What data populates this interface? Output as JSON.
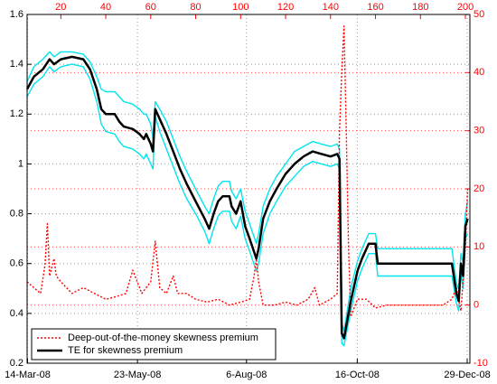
{
  "chart_data": {
    "type": "line",
    "xlim": [
      5,
      202
    ],
    "xticks": [
      {
        "value": 5.2,
        "label": "14-Mar-08"
      },
      {
        "value": 54.1,
        "label": "23-May-08"
      },
      {
        "value": 102.6,
        "label": "6-Aug-08"
      },
      {
        "value": 151.9,
        "label": "16-Oct-08"
      },
      {
        "value": 200.8,
        "label": "29-Dec-08"
      }
    ],
    "x2ticks": [
      20,
      40,
      60,
      80,
      100,
      120,
      140,
      160,
      180,
      200
    ],
    "ylim": [
      0.2,
      1.6
    ],
    "yticks": [
      0.2,
      0.4,
      0.6,
      0.8,
      1,
      1.2,
      1.4,
      1.6
    ],
    "y2lim": [
      -10,
      50
    ],
    "y2ticks": [
      -10,
      0,
      10,
      20,
      30,
      40,
      50
    ],
    "y2color": "#ff0000",
    "grid": true,
    "legend": "lower left",
    "series": [
      {
        "color": "#00e5ee",
        "x": [
          5,
          8,
          12,
          15,
          17,
          20,
          25,
          30,
          33,
          36,
          38,
          40,
          44,
          46,
          48,
          52,
          55,
          57,
          58,
          60,
          61,
          62,
          64,
          67,
          70,
          73,
          76,
          80,
          84,
          86,
          88,
          90,
          92,
          95,
          96,
          98,
          100,
          102,
          104,
          107,
          108,
          110,
          113,
          116,
          120,
          124,
          128,
          132,
          136,
          140,
          143,
          144,
          145,
          146,
          149,
          152,
          154,
          157,
          160,
          161,
          180,
          194,
          196,
          197,
          198,
          199,
          200,
          201
        ],
        "values": [
          1.33,
          1.39,
          1.42,
          1.45,
          1.43,
          1.45,
          1.45,
          1.44,
          1.41,
          1.35,
          1.3,
          1.29,
          1.29,
          1.27,
          1.25,
          1.24,
          1.22,
          1.2,
          1.2,
          1.16,
          1.1,
          1.25,
          1.22,
          1.17,
          1.1,
          1.03,
          0.97,
          0.9,
          0.83,
          0.8,
          0.86,
          0.91,
          0.93,
          0.93,
          0.89,
          0.86,
          0.9,
          0.81,
          0.76,
          0.68,
          0.72,
          0.83,
          0.9,
          0.95,
          1.0,
          1.05,
          1.07,
          1.09,
          1.08,
          1.07,
          1.08,
          1.06,
          0.36,
          0.33,
          0.5,
          0.61,
          0.66,
          0.72,
          0.72,
          0.66,
          0.66,
          0.66,
          0.52,
          0.5,
          0.64,
          0.6,
          0.8,
          0.85
        ]
      },
      {
        "color": "#00e5ee",
        "x": [
          5,
          8,
          12,
          15,
          17,
          20,
          25,
          30,
          33,
          36,
          38,
          40,
          44,
          46,
          48,
          52,
          55,
          57,
          58,
          60,
          61,
          62,
          64,
          67,
          70,
          73,
          76,
          80,
          84,
          86,
          88,
          90,
          92,
          95,
          96,
          98,
          100,
          102,
          104,
          107,
          108,
          110,
          113,
          116,
          120,
          124,
          128,
          132,
          136,
          140,
          143,
          144,
          145,
          146,
          149,
          152,
          154,
          157,
          160,
          161,
          180,
          194,
          196,
          197,
          198,
          199,
          200,
          201
        ],
        "values": [
          1.27,
          1.32,
          1.35,
          1.39,
          1.37,
          1.39,
          1.4,
          1.39,
          1.34,
          1.25,
          1.16,
          1.13,
          1.12,
          1.09,
          1.07,
          1.06,
          1.04,
          1.02,
          1.04,
          1.0,
          0.98,
          1.19,
          1.13,
          1.06,
          0.99,
          0.92,
          0.86,
          0.8,
          0.73,
          0.68,
          0.74,
          0.79,
          0.81,
          0.81,
          0.77,
          0.74,
          0.79,
          0.7,
          0.65,
          0.57,
          0.6,
          0.72,
          0.8,
          0.85,
          0.91,
          0.95,
          0.99,
          1.01,
          1.0,
          0.99,
          1.0,
          0.98,
          0.28,
          0.27,
          0.41,
          0.53,
          0.58,
          0.64,
          0.64,
          0.55,
          0.55,
          0.55,
          0.44,
          0.41,
          0.56,
          0.5,
          0.7,
          0.72
        ]
      },
      {
        "name": "Deep-out-of-the-money skewness premium",
        "color": "#ff0000",
        "axis": "y2",
        "dash": true,
        "x": [
          5,
          8,
          11,
          13,
          14,
          15,
          17,
          18,
          20,
          25,
          30,
          35,
          40,
          45,
          49,
          52,
          54,
          56,
          60,
          62,
          64,
          67,
          70,
          72,
          76,
          80,
          85,
          90,
          95,
          100,
          104,
          106,
          107,
          108,
          110,
          115,
          120,
          125,
          130,
          133,
          135,
          140,
          143,
          144,
          145,
          146,
          147,
          148,
          149,
          152,
          156,
          160,
          165,
          170,
          180,
          190,
          194,
          196,
          198,
          200,
          201
        ],
        "values": [
          4,
          3,
          2,
          7,
          14,
          5,
          8,
          5,
          4,
          2,
          3,
          2,
          1,
          1.5,
          2,
          6,
          4,
          2,
          4,
          11,
          3,
          2,
          5,
          2,
          2,
          1,
          0.5,
          1,
          0,
          0.5,
          1,
          5,
          8,
          4,
          0,
          0,
          0.5,
          0,
          1,
          3,
          0,
          1,
          2,
          30,
          40,
          48,
          30,
          10,
          -2,
          1,
          1,
          -0.5,
          0,
          0,
          0,
          0,
          1,
          3,
          -1,
          10,
          20
        ]
      },
      {
        "name": "TE for skewness premium",
        "color": "#000000",
        "width": 2.5,
        "x": [
          5,
          8,
          12,
          15,
          17,
          20,
          25,
          30,
          33,
          36,
          38,
          40,
          44,
          46,
          48,
          52,
          55,
          57,
          58,
          60,
          61,
          62,
          64,
          67,
          70,
          73,
          76,
          80,
          84,
          86,
          88,
          90,
          92,
          95,
          96,
          98,
          100,
          102,
          104,
          107,
          108,
          110,
          113,
          116,
          120,
          124,
          128,
          132,
          136,
          140,
          143,
          144,
          145,
          146,
          149,
          152,
          154,
          157,
          160,
          161,
          180,
          194,
          196,
          197,
          198,
          199,
          200,
          201
        ],
        "values": [
          1.3,
          1.35,
          1.38,
          1.42,
          1.4,
          1.42,
          1.43,
          1.42,
          1.38,
          1.3,
          1.22,
          1.2,
          1.2,
          1.17,
          1.15,
          1.14,
          1.12,
          1.1,
          1.12,
          1.08,
          1.05,
          1.22,
          1.18,
          1.12,
          1.05,
          0.98,
          0.92,
          0.85,
          0.78,
          0.74,
          0.8,
          0.85,
          0.87,
          0.87,
          0.83,
          0.8,
          0.85,
          0.75,
          0.7,
          0.62,
          0.66,
          0.78,
          0.85,
          0.9,
          0.96,
          1.0,
          1.03,
          1.05,
          1.04,
          1.03,
          1.04,
          1.02,
          0.32,
          0.3,
          0.45,
          0.57,
          0.62,
          0.68,
          0.68,
          0.6,
          0.6,
          0.6,
          0.48,
          0.45,
          0.6,
          0.55,
          0.75,
          0.78
        ]
      }
    ]
  }
}
